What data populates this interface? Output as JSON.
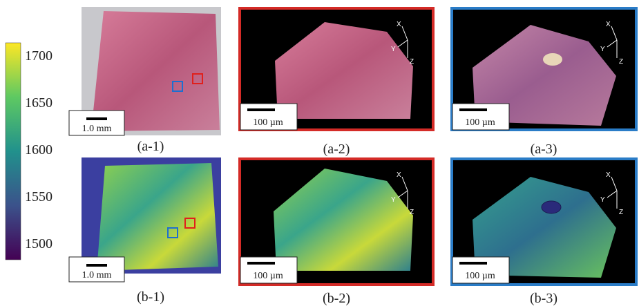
{
  "colorbar": {
    "ticks": [
      1700,
      1650,
      1600,
      1550,
      1500
    ]
  },
  "panels": [
    {
      "label": "(a-1)",
      "scale": "1.0 mm"
    },
    {
      "label": "(a-2)",
      "scale": "100 µm"
    },
    {
      "label": "(a-3)",
      "scale": "100 µm"
    },
    {
      "label": "(b-1)",
      "scale": "1.0 mm"
    },
    {
      "label": "(b-2)",
      "scale": "100 µm"
    },
    {
      "label": "(b-3)",
      "scale": "100 µm"
    }
  ],
  "axes": {
    "x": "X",
    "y": "Y",
    "z": "Z"
  }
}
